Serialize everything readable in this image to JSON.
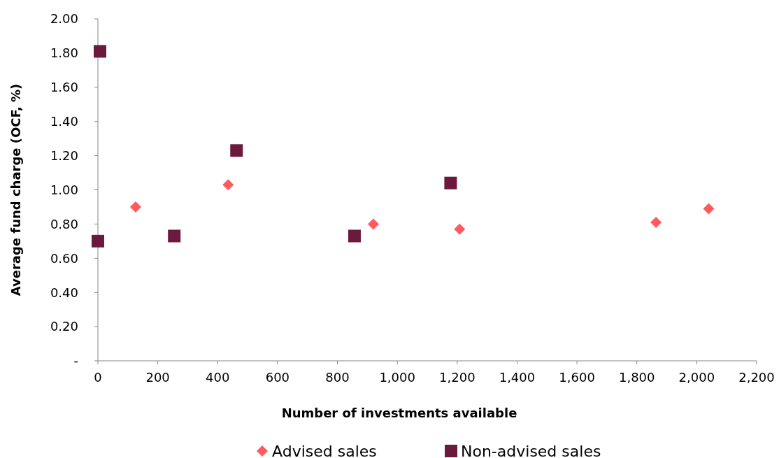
{
  "chart_data": {
    "type": "scatter",
    "xlabel": "Number of investments available",
    "ylabel": "Average fund charge (OCF, %)",
    "xlim": [
      0,
      2200
    ],
    "xticks": [
      0,
      200,
      400,
      600,
      800,
      {
        "value": 1000,
        "label": "1,000"
      },
      {
        "value": 1200,
        "label": "1,200"
      },
      {
        "value": 1400,
        "label": "1,400"
      },
      {
        "value": 1600,
        "label": "1,600"
      },
      {
        "value": 1800,
        "label": "1,800"
      },
      {
        "value": 2000,
        "label": "2,000"
      },
      {
        "value": 2200,
        "label": "2,200"
      }
    ],
    "ylim": [
      0,
      2
    ],
    "yticks": [
      {
        "value": 0,
        "label": "-"
      },
      {
        "value": 0.2,
        "label": "0.20"
      },
      {
        "value": 0.4,
        "label": "0.40"
      },
      {
        "value": 0.6,
        "label": "0.60"
      },
      {
        "value": 0.8,
        "label": "0.80"
      },
      {
        "value": 1,
        "label": "1.00"
      },
      {
        "value": 1.2,
        "label": "1.20"
      },
      {
        "value": 1.4,
        "label": "1.40"
      },
      {
        "value": 1.6,
        "label": "1.60"
      },
      {
        "value": 1.8,
        "label": "1.80"
      },
      {
        "value": 2,
        "label": "2.00"
      }
    ],
    "legend": "bottom",
    "series": [
      {
        "name": "Advised sales",
        "color": "#ff5a5f",
        "marker": "diamond",
        "x": [
          126,
          435,
          920,
          1208,
          1864,
          2040
        ],
        "values": [
          0.9,
          1.03,
          0.8,
          0.77,
          0.81,
          0.89
        ]
      },
      {
        "name": "Non-advised sales",
        "color": "#6b1a3e",
        "marker": "square",
        "x": [
          7,
          0,
          255,
          463,
          857,
          1178
        ],
        "values": [
          1.81,
          0.7,
          0.73,
          1.23,
          0.73,
          1.04
        ]
      }
    ]
  }
}
